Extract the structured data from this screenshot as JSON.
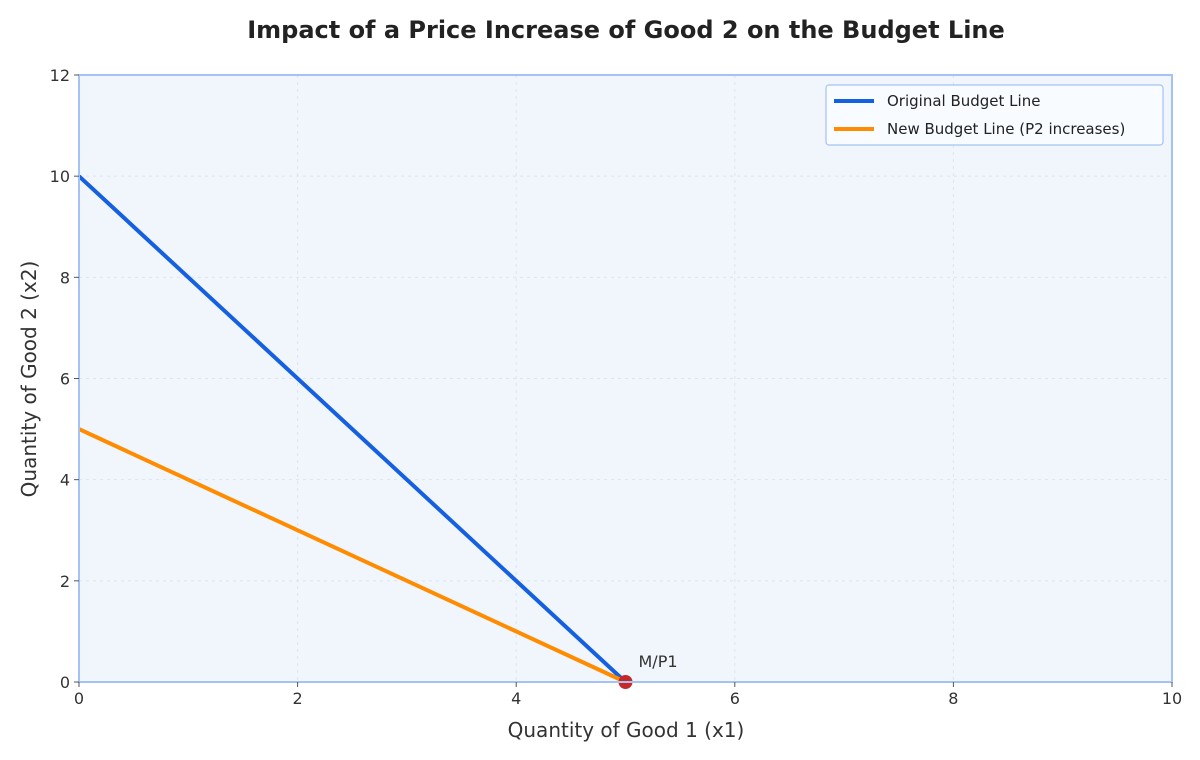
{
  "chart_data": {
    "type": "line",
    "title": "Impact of a Price Increase of Good 2 on the Budget Line",
    "xlabel": "Quantity of Good 1 (x1)",
    "ylabel": "Quantity of Good 2 (x2)",
    "xlim": [
      0,
      10
    ],
    "ylim": [
      0,
      12
    ],
    "xticks": [
      0,
      2,
      4,
      6,
      8,
      10
    ],
    "yticks": [
      0,
      2,
      4,
      6,
      8,
      10,
      12
    ],
    "grid": true,
    "legend_position": "top-right",
    "series": [
      {
        "name": "Original Budget Line",
        "color": "#1560e0",
        "x": [
          0,
          5
        ],
        "y": [
          10,
          0
        ]
      },
      {
        "name": "New Budget Line (P2 increases)",
        "color": "#ff8c00",
        "x": [
          0,
          5
        ],
        "y": [
          5,
          0
        ]
      }
    ],
    "points": [
      {
        "label": "M/P1",
        "x": 5,
        "y": 0,
        "color": "#c62828"
      }
    ],
    "colors": {
      "plot_background": "#f1f6fd",
      "axis_frame": "#a4c2f4",
      "grid": "#dbe4f0"
    }
  }
}
